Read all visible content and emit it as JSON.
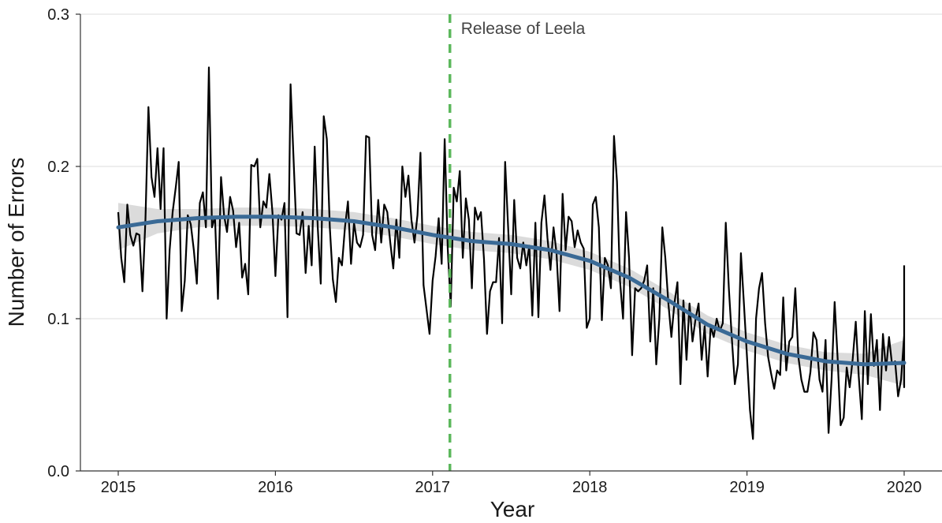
{
  "chart_data": {
    "type": "line",
    "title": "",
    "xlabel": "Year",
    "ylabel": "Number of Errors",
    "xlim": [
      2014.75,
      2020.22
    ],
    "ylim": [
      0.0,
      0.3
    ],
    "x_ticks": [
      "2015",
      "2016",
      "2017",
      "2018",
      "2019",
      "2020"
    ],
    "y_ticks": [
      "0.0",
      "0.1",
      "0.2",
      "0.3"
    ],
    "grid": "horizontal",
    "series": [
      {
        "role": "weekly",
        "color": "#000000",
        "x_start": 2015.0,
        "x_step": 0.01923,
        "values": [
          0.17,
          0.14,
          0.124,
          0.175,
          0.155,
          0.148,
          0.156,
          0.155,
          0.118,
          0.165,
          0.239,
          0.193,
          0.18,
          0.212,
          0.172,
          0.212,
          0.1,
          0.145,
          0.17,
          0.186,
          0.203,
          0.105,
          0.125,
          0.168,
          0.162,
          0.145,
          0.123,
          0.176,
          0.183,
          0.16,
          0.265,
          0.16,
          0.167,
          0.113,
          0.193,
          0.168,
          0.157,
          0.18,
          0.171,
          0.147,
          0.163,
          0.127,
          0.136,
          0.116,
          0.201,
          0.2,
          0.205,
          0.16,
          0.177,
          0.173,
          0.195,
          0.17,
          0.128,
          0.168,
          0.165,
          0.176,
          0.101,
          0.254,
          0.205,
          0.156,
          0.155,
          0.17,
          0.13,
          0.161,
          0.135,
          0.213,
          0.16,
          0.123,
          0.233,
          0.218,
          0.16,
          0.126,
          0.111,
          0.14,
          0.135,
          0.16,
          0.177,
          0.136,
          0.163,
          0.15,
          0.147,
          0.155,
          0.22,
          0.219,
          0.155,
          0.145,
          0.178,
          0.15,
          0.175,
          0.17,
          0.15,
          0.133,
          0.165,
          0.14,
          0.2,
          0.18,
          0.194,
          0.165,
          0.15,
          0.168,
          0.209,
          0.122,
          0.106,
          0.09,
          0.125,
          0.141,
          0.166,
          0.136,
          0.218,
          0.146,
          0.108,
          0.186,
          0.177,
          0.197,
          0.14,
          0.179,
          0.165,
          0.12,
          0.173,
          0.165,
          0.17,
          0.139,
          0.09,
          0.118,
          0.124,
          0.124,
          0.153,
          0.097,
          0.203,
          0.16,
          0.116,
          0.178,
          0.14,
          0.133,
          0.15,
          0.135,
          0.148,
          0.102,
          0.163,
          0.101,
          0.163,
          0.181,
          0.153,
          0.132,
          0.16,
          0.143,
          0.105,
          0.182,
          0.145,
          0.167,
          0.164,
          0.147,
          0.158,
          0.15,
          0.146,
          0.094,
          0.1,
          0.175,
          0.18,
          0.16,
          0.099,
          0.14,
          0.135,
          0.12,
          0.22,
          0.19,
          0.125,
          0.1,
          0.17,
          0.14,
          0.076,
          0.12,
          0.118,
          0.12,
          0.125,
          0.135,
          0.085,
          0.12,
          0.07,
          0.1,
          0.16,
          0.14,
          0.11,
          0.088,
          0.11,
          0.124,
          0.057,
          0.112,
          0.073,
          0.11,
          0.085,
          0.1,
          0.11,
          0.073,
          0.095,
          0.062,
          0.095,
          0.088,
          0.1,
          0.092,
          0.097,
          0.163,
          0.12,
          0.087,
          0.057,
          0.07,
          0.143,
          0.11,
          0.075,
          0.04,
          0.021,
          0.1,
          0.12,
          0.13,
          0.097,
          0.075,
          0.064,
          0.054,
          0.066,
          0.063,
          0.114,
          0.066,
          0.085,
          0.088,
          0.12,
          0.075,
          0.06,
          0.052,
          0.052,
          0.065,
          0.091,
          0.086,
          0.06,
          0.052,
          0.086,
          0.025,
          0.06,
          0.111,
          0.074,
          0.03,
          0.035,
          0.068,
          0.055,
          0.074,
          0.098,
          0.062,
          0.034,
          0.105,
          0.057,
          0.103,
          0.069,
          0.086,
          0.04,
          0.09,
          0.066,
          0.088,
          0.07,
          0.072,
          0.049,
          0.06,
          0.089,
          0.072,
          0.055,
          0.066,
          0.062,
          0.135
        ]
      },
      {
        "role": "smoothed trend",
        "color": "#3a6a96",
        "x": [
          2015.0,
          2015.25,
          2015.5,
          2015.75,
          2016.0,
          2016.25,
          2016.5,
          2016.75,
          2017.0,
          2017.25,
          2017.5,
          2017.75,
          2018.0,
          2018.25,
          2018.5,
          2018.75,
          2019.0,
          2019.25,
          2019.5,
          2019.75,
          2020.0
        ],
        "values": [
          0.16,
          0.164,
          0.166,
          0.167,
          0.167,
          0.166,
          0.164,
          0.16,
          0.155,
          0.151,
          0.149,
          0.145,
          0.138,
          0.127,
          0.112,
          0.096,
          0.085,
          0.077,
          0.072,
          0.07,
          0.071
        ]
      }
    ],
    "confidence_band": {
      "color": "#cfcfcf",
      "x": [
        2015.0,
        2015.25,
        2015.5,
        2015.75,
        2016.0,
        2016.25,
        2016.5,
        2016.75,
        2017.0,
        2017.25,
        2017.5,
        2017.75,
        2018.0,
        2018.25,
        2018.5,
        2018.75,
        2019.0,
        2019.25,
        2019.5,
        2019.75,
        2020.0
      ],
      "lower": [
        0.145,
        0.156,
        0.16,
        0.161,
        0.161,
        0.16,
        0.158,
        0.154,
        0.149,
        0.145,
        0.143,
        0.139,
        0.132,
        0.121,
        0.106,
        0.09,
        0.079,
        0.071,
        0.066,
        0.063,
        0.056
      ],
      "upper": [
        0.176,
        0.172,
        0.172,
        0.173,
        0.173,
        0.172,
        0.17,
        0.166,
        0.161,
        0.157,
        0.155,
        0.151,
        0.144,
        0.133,
        0.118,
        0.102,
        0.091,
        0.083,
        0.078,
        0.077,
        0.086
      ]
    },
    "annotations": [
      {
        "type": "vline",
        "x": 2017.11,
        "color": "#5cb85c",
        "style": "dashed",
        "label": "Release of Leela"
      }
    ]
  }
}
